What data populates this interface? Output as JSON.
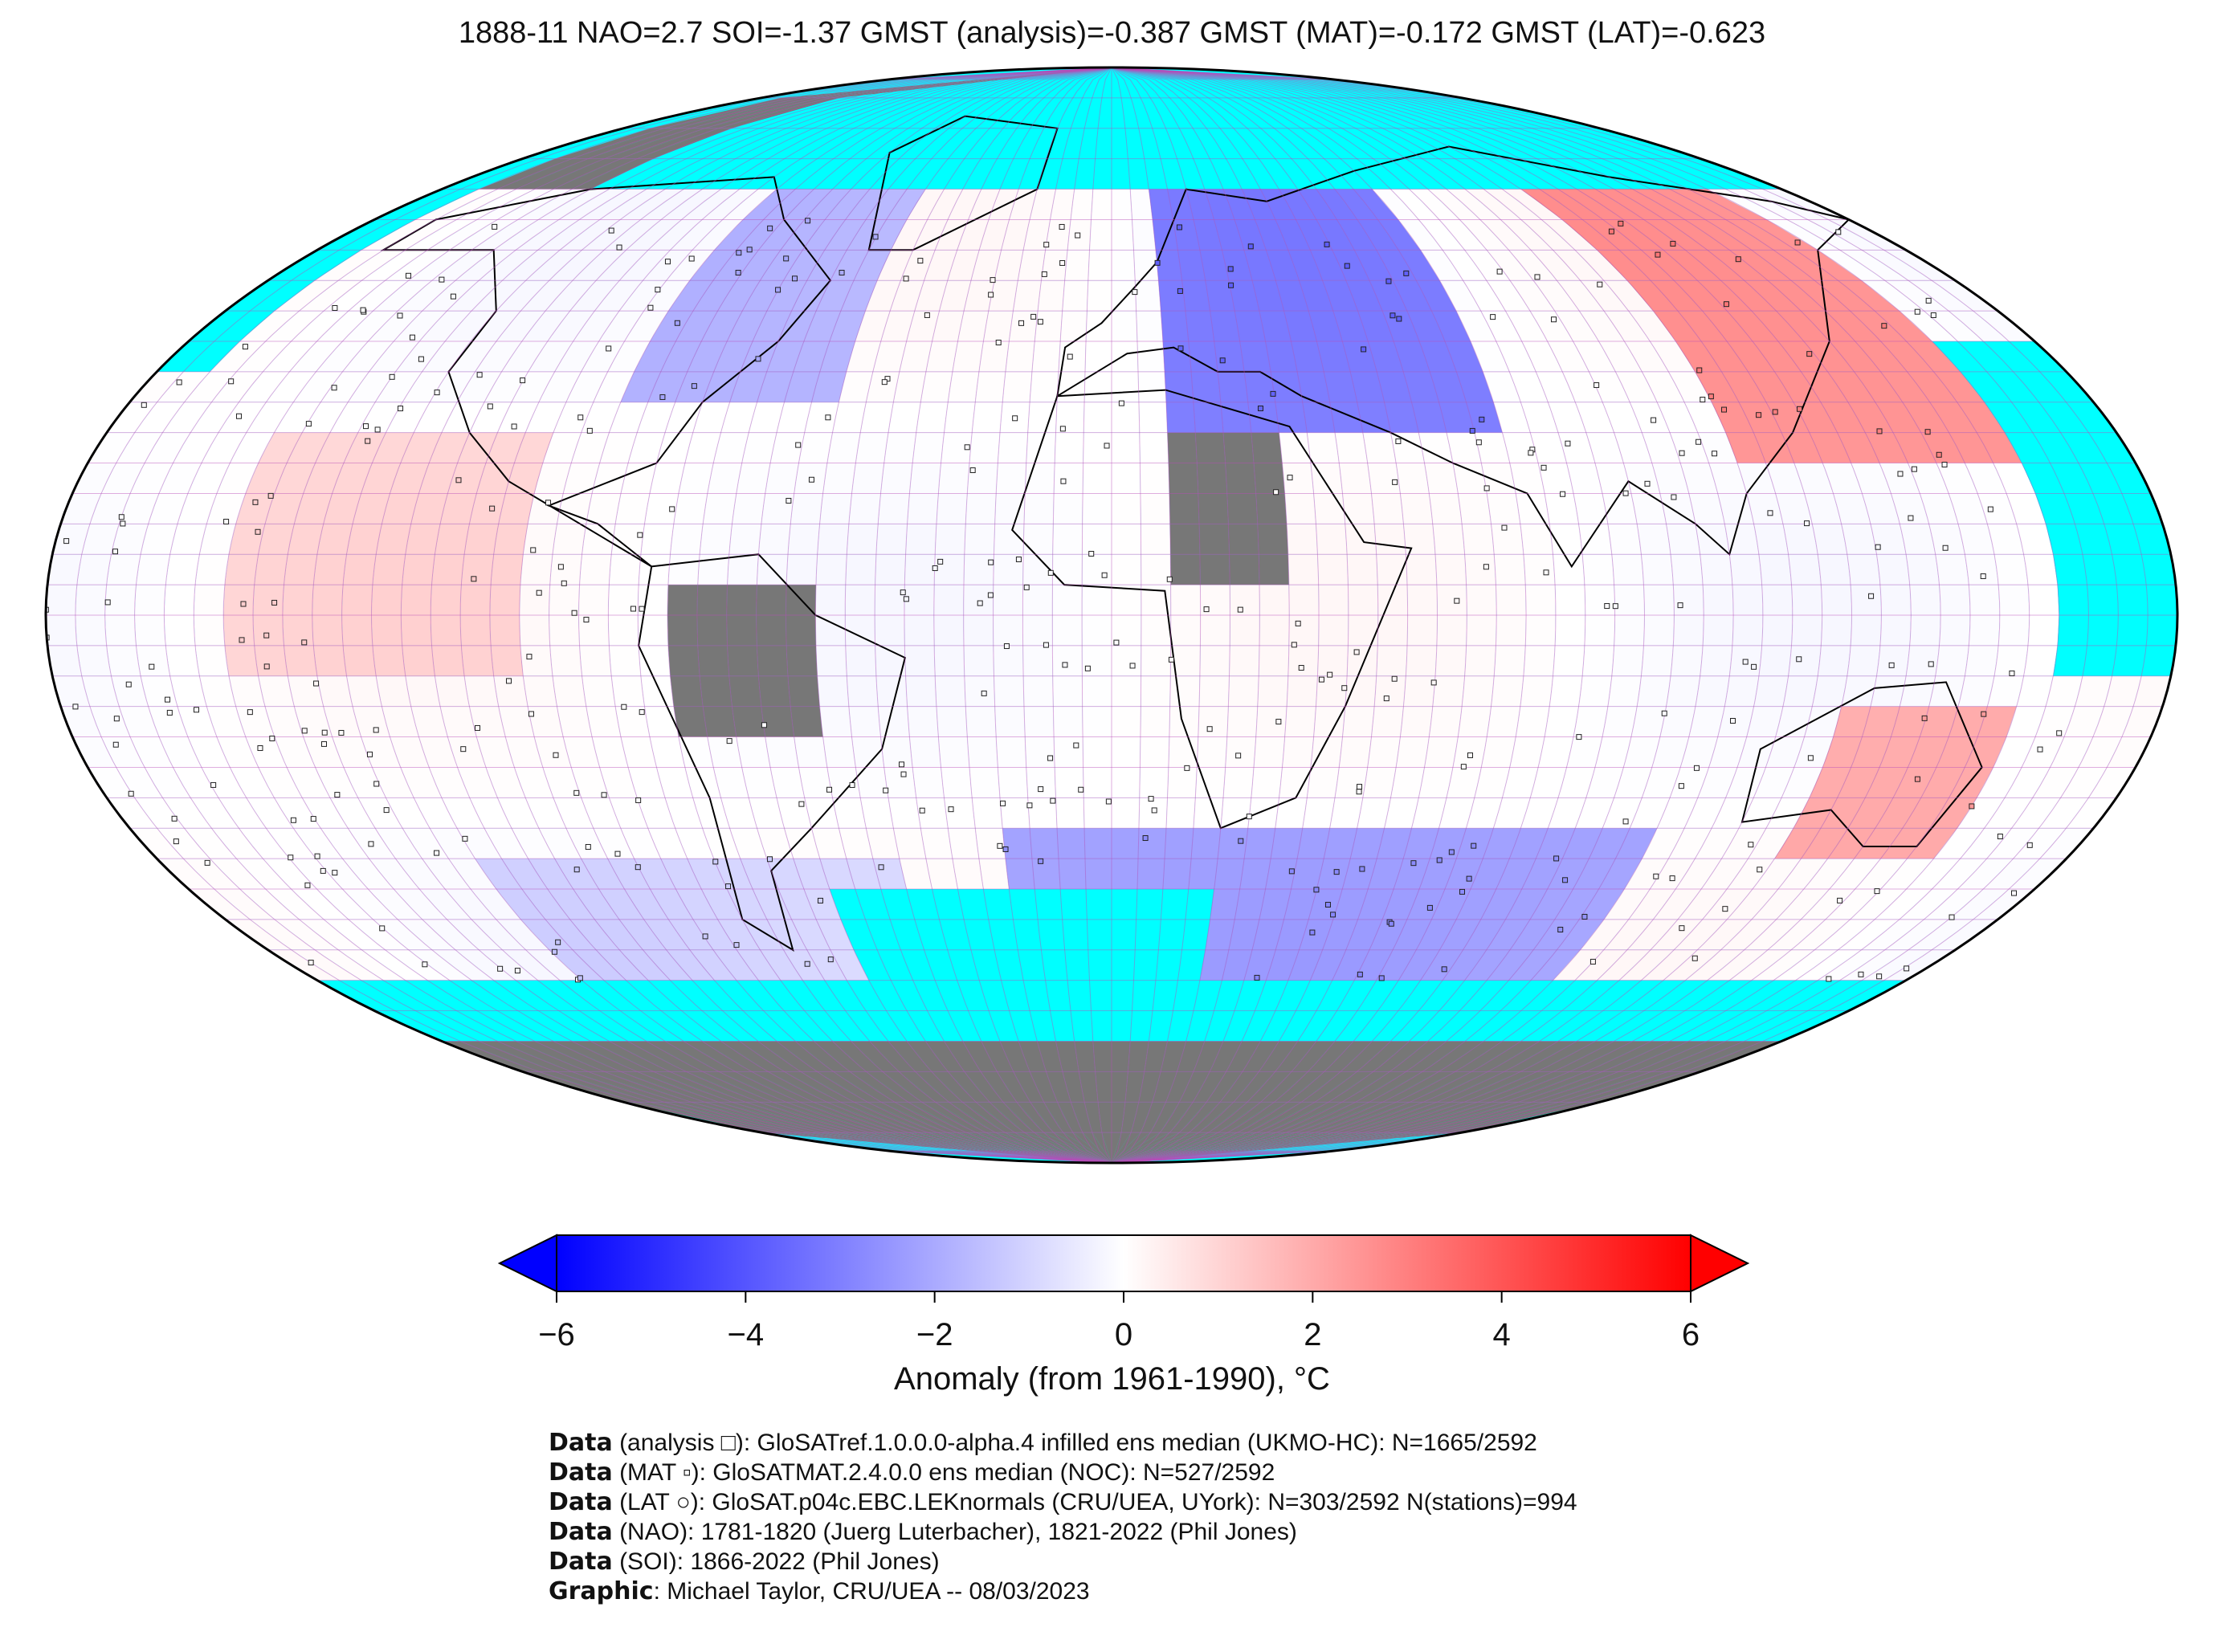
{
  "title": "1888-11 NAO=2.7 SOI=-1.37 GMST (analysis)=-0.387 GMST (MAT)=-0.172 GMST (LAT)=-0.623",
  "colorbar": {
    "label": "Anomaly (from 1961-1990), °C",
    "ticks": [
      "−6",
      "−4",
      "−2",
      "0",
      "2",
      "4",
      "6"
    ],
    "range": [
      -6,
      6
    ],
    "colors": {
      "cold": "#0000ff",
      "neutral": "#ffffff",
      "warm": "#ff0000"
    }
  },
  "map_colors": {
    "no_data": "#00ffff",
    "land_masked": "#777777"
  },
  "footer": [
    {
      "bold": "Data",
      "text": " (analysis □): GloSATref.1.0.0.0-alpha.4 infilled ens median (UKMO-HC): N=1665/2592"
    },
    {
      "bold": "Data",
      "text": " (MAT ▫): GloSATMAT.2.4.0.0 ens median (NOC): N=527/2592"
    },
    {
      "bold": "Data",
      "text": " (LAT ○): GloSAT.p04c.EBC.LEKnormals (CRU/UEA, UYork): N=303/2592 N(stations)=994"
    },
    {
      "bold": "Data",
      "text": " (NAO): 1781-1820 (Juerg Luterbacher), 1821-2022 (Phil Jones)"
    },
    {
      "bold": "Data",
      "text": " (SOI): 1866-2022 (Phil Jones)"
    },
    {
      "bold": "Graphic",
      "text": ": Michael Taylor, CRU/UEA -- 08/03/2023"
    }
  ]
}
